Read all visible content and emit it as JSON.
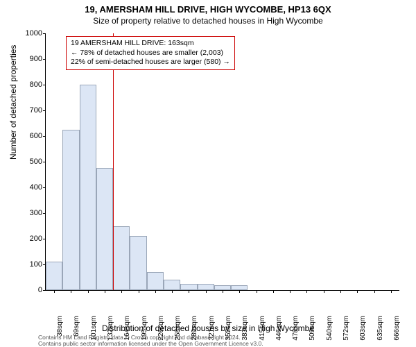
{
  "titles": {
    "line1": "19, AMERSHAM HILL DRIVE, HIGH WYCOMBE, HP13 6QX",
    "line2": "Size of property relative to detached houses in High Wycombe"
  },
  "ylabel": "Number of detached properties",
  "xlabel": "Distribution of detached houses by size in High Wycombe",
  "chart": {
    "type": "histogram",
    "ylim": [
      0,
      1000
    ],
    "ytick_step": 100,
    "background_color": "#ffffff",
    "bar_fill": "#dce6f5",
    "bar_border": "#9aa6b8",
    "categories": [
      "38sqm",
      "69sqm",
      "101sqm",
      "132sqm",
      "164sqm",
      "195sqm",
      "226sqm",
      "258sqm",
      "289sqm",
      "321sqm",
      "352sqm",
      "383sqm",
      "415sqm",
      "446sqm",
      "478sqm",
      "509sqm",
      "540sqm",
      "572sqm",
      "603sqm",
      "635sqm",
      "666sqm"
    ],
    "values": [
      110,
      625,
      800,
      475,
      250,
      210,
      70,
      40,
      25,
      25,
      20,
      20,
      0,
      0,
      0,
      0,
      0,
      0,
      0,
      0,
      0
    ],
    "bar_count": 21,
    "marker": {
      "position_index": 4.0,
      "color": "#cc0000"
    }
  },
  "annotation": {
    "border_color": "#cc0000",
    "lines": [
      "19 AMERSHAM HILL DRIVE: 163sqm",
      "← 78% of detached houses are smaller (2,003)",
      "22% of semi-detached houses are larger (580) →"
    ]
  },
  "footnote": {
    "line1": "Contains HM Land Registry data © Crown copyright and database right 2024.",
    "line2": "Contains public sector information licensed under the Open Government Licence v3.0."
  },
  "fonts": {
    "title_size": 13,
    "subtitle_size": 12,
    "axis_label_size": 12,
    "tick_size": 11
  }
}
